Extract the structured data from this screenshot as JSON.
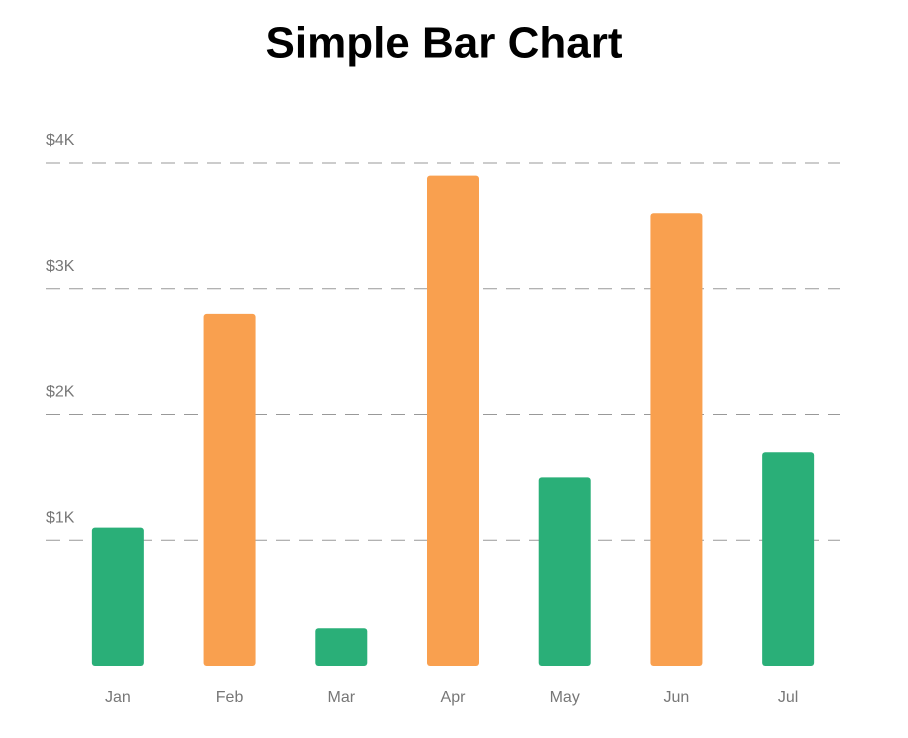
{
  "chart_data": {
    "type": "bar",
    "title": "Simple Bar Chart",
    "categories": [
      "Jan",
      "Feb",
      "Mar",
      "Apr",
      "May",
      "Jun",
      "Jul"
    ],
    "values": [
      1100,
      2800,
      300,
      3900,
      1500,
      3600,
      1700
    ],
    "colors": [
      "#2aaf78",
      "#f9a04f",
      "#2aaf78",
      "#f9a04f",
      "#2aaf78",
      "#f9a04f",
      "#2aaf78"
    ],
    "ylim": [
      0,
      4000
    ],
    "yticks": [
      {
        "value": 1000,
        "label": "$1K"
      },
      {
        "value": 2000,
        "label": "$2K"
      },
      {
        "value": 3000,
        "label": "$3K"
      },
      {
        "value": 4000,
        "label": "$4K"
      }
    ],
    "grid": true
  }
}
